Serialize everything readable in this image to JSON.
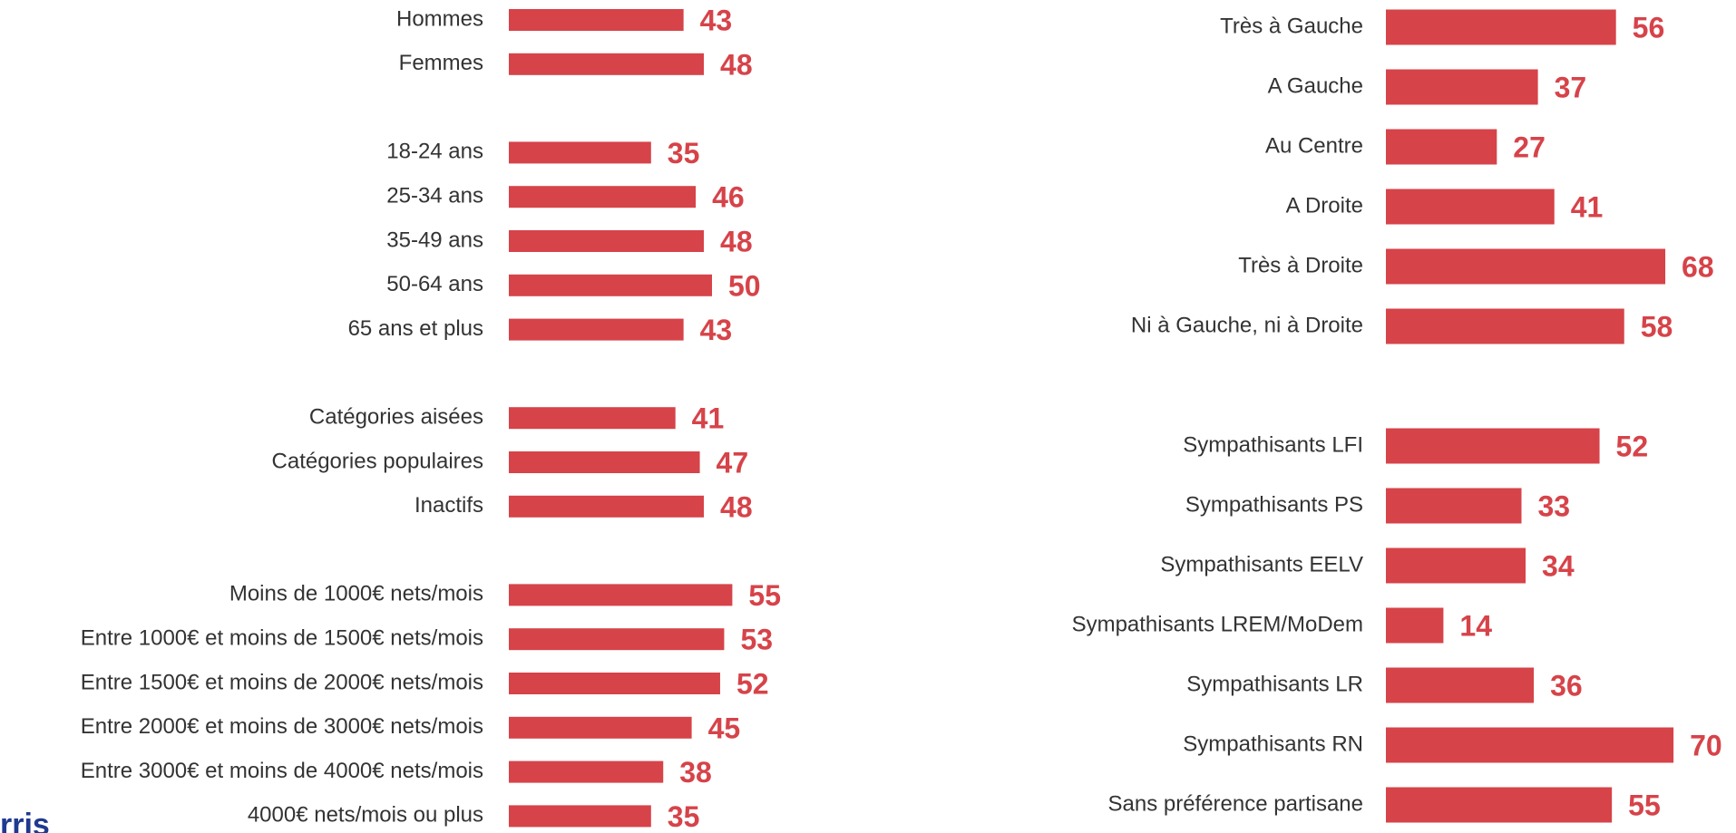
{
  "chart_data": [
    {
      "type": "bar",
      "orientation": "horizontal",
      "color": "#d64349",
      "xlim": [
        0,
        100
      ],
      "groups": [
        {
          "categories": [
            "Hommes",
            "Femmes"
          ],
          "values": [
            43,
            48
          ]
        },
        {
          "categories": [
            "18-24 ans",
            "25-34 ans",
            "35-49 ans",
            "50-64 ans",
            "65 ans et plus"
          ],
          "values": [
            35,
            46,
            48,
            50,
            43
          ]
        },
        {
          "categories": [
            "Catégories aisées",
            "Catégories populaires",
            "Inactifs"
          ],
          "values": [
            41,
            47,
            48
          ]
        },
        {
          "categories": [
            "Moins de 1000€ nets/mois",
            "Entre 1000€ et moins de 1500€ nets/mois",
            "Entre 1500€ et moins de 2000€ nets/mois",
            "Entre 2000€ et moins de 3000€ nets/mois",
            "Entre 3000€ et moins de 4000€ nets/mois",
            "4000€ nets/mois ou plus"
          ],
          "values": [
            55,
            53,
            52,
            45,
            38,
            35
          ]
        }
      ]
    },
    {
      "type": "bar",
      "orientation": "horizontal",
      "color": "#d64349",
      "xlim": [
        0,
        100
      ],
      "groups": [
        {
          "categories": [
            "Très à Gauche",
            "A Gauche",
            "Au Centre",
            "A Droite",
            "Très à Droite",
            "Ni à Gauche, ni à Droite"
          ],
          "values": [
            56,
            37,
            27,
            41,
            68,
            58
          ]
        },
        {
          "categories": [
            "Sympathisants LFI",
            "Sympathisants PS",
            "Sympathisants EELV",
            "Sympathisants LREM/MoDem",
            "Sympathisants LR",
            "Sympathisants RN",
            "Sans préférence partisane"
          ],
          "values": [
            52,
            33,
            34,
            14,
            36,
            70,
            55
          ]
        }
      ]
    }
  ],
  "logo_text": "rris"
}
